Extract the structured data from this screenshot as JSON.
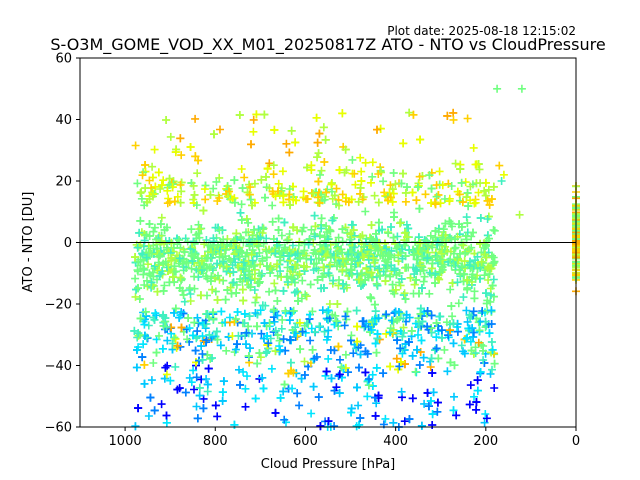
{
  "chart_data": {
    "type": "scatter",
    "title": "S-O3M_GOME_VOD_XX_M01_20250817Z ATO - NTO vs CloudPressure",
    "plot_date": "Plot date: 2025-08-18 12:15:02",
    "xlabel": "Cloud Pressure [hPa]",
    "ylabel": "ATO - NTO [DU]",
    "xlim": [
      1100,
      0
    ],
    "ylim": [
      -60,
      60
    ],
    "x_ticks": [
      1000,
      800,
      600,
      400,
      200,
      0
    ],
    "y_ticks": [
      -60,
      -40,
      -20,
      0,
      20,
      40,
      60
    ],
    "reference_line": 0,
    "marker": "plus",
    "colors": [
      "#0000ff",
      "#0080ff",
      "#00c8ff",
      "#00e5ff",
      "#40f0c0",
      "#70ff80",
      "#b0ff40",
      "#e8ff00",
      "#ffd000",
      "#ffaa00"
    ],
    "grid": false,
    "legend": "none"
  }
}
